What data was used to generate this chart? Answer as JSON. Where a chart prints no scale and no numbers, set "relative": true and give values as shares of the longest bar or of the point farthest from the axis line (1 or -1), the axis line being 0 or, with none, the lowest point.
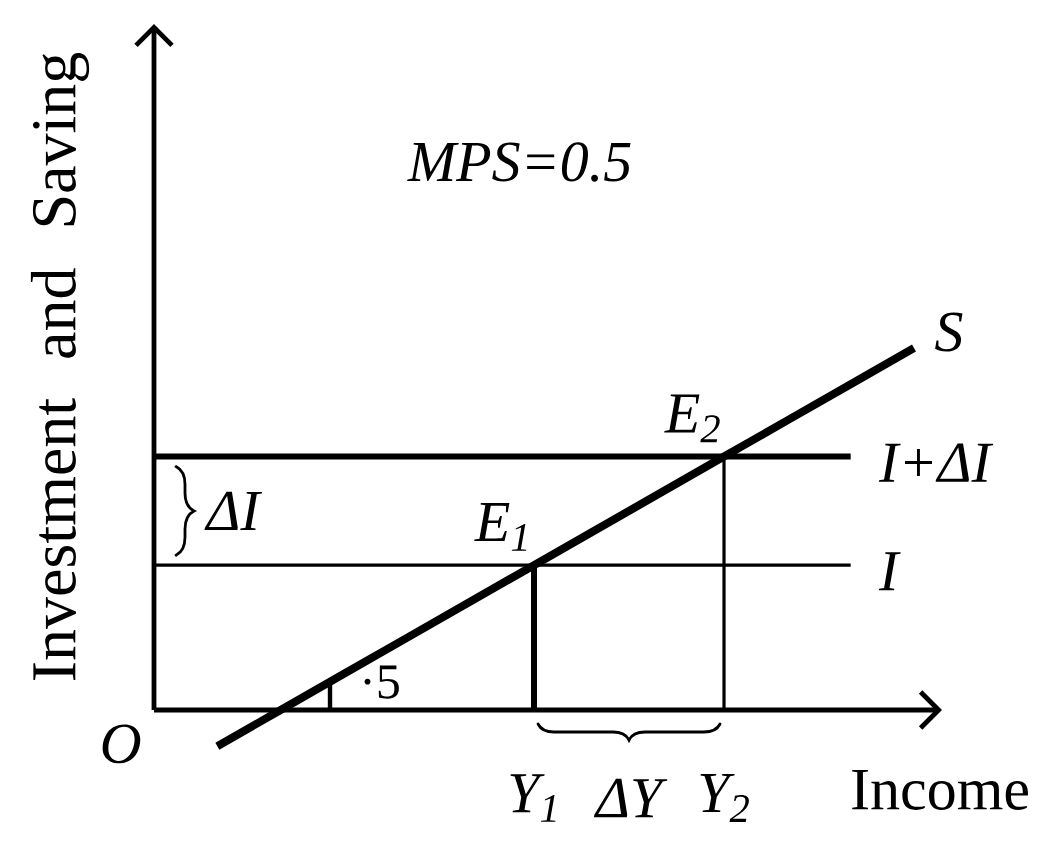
{
  "chart_data": {
    "type": "line",
    "relative": true,
    "xlabel": "Income",
    "ylabel": "Investment and Saving",
    "categories": [
      null,
      null,
      null,
      null,
      null,
      null,
      "Y$_{1}$",
      null,
      null,
      "Y$_{2}$",
      null,
      null,
      null
    ],
    "series": [
      {
        "name": "S",
        "color": "#000000",
        "values": [
          null,
          -0.1,
          0,
          0.1,
          0.2,
          0.3,
          0.4,
          0.5,
          0.6,
          0.7,
          0.8,
          0.9,
          1
        ]
      },
      {
        "name": "I",
        "color": "#000000",
        "values": [
          0.4,
          0.4,
          0.4,
          0.4,
          0.4,
          0.4,
          0.4,
          0.4,
          0.4,
          0.4,
          0.4,
          0.4,
          null
        ]
      },
      {
        "name": "I+ΔI",
        "color": "#000000",
        "values": [
          0.7,
          0.7,
          0.7,
          0.7,
          0.7,
          0.7,
          0.7,
          0.7,
          0.7,
          0.7,
          0.7,
          0.7,
          null
        ]
      },
      {
        "color": "#000000",
        "x": [
          "Y$_{1}$",
          "Y$_{1}$"
        ],
        "values": [
          0,
          0.4
        ]
      },
      {
        "color": "#000000",
        "x": [
          "Y$_{2}$",
          "Y$_{2}$"
        ],
        "values": [
          0,
          0.7
        ]
      }
    ],
    "annotations": [
      "MPS=0.5",
      {
        "text": "E$_{1}$",
        "x": "Y$_{1}$",
        "y": 0.4
      },
      {
        "text": "E$_{2}$",
        "x": "Y$_{2}$",
        "y": 0.7
      },
      "O",
      "·5",
      "ΔI",
      "ΔY"
    ]
  }
}
